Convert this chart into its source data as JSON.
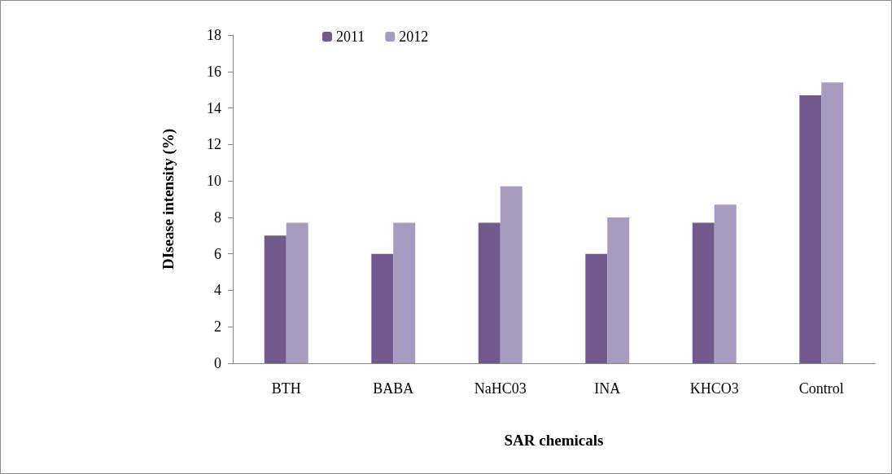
{
  "chart_data": {
    "type": "bar",
    "xlabel": "SAR chemicals",
    "ylabel": "DIsease intensity (%)",
    "categories": [
      "BTH",
      "BABA",
      "NaHC03",
      "INA",
      "KHCO3",
      "Control"
    ],
    "series": [
      {
        "name": "2011",
        "color": "#725a8f",
        "values": [
          7.0,
          6.0,
          7.7,
          6.0,
          7.7,
          14.7
        ]
      },
      {
        "name": "2012",
        "color": "#a89bc0",
        "values": [
          7.7,
          7.7,
          9.7,
          8.0,
          8.7,
          15.4
        ]
      }
    ],
    "ylim": [
      0,
      18
    ],
    "yticks": [
      0,
      2,
      4,
      6,
      8,
      10,
      12,
      14,
      16,
      18
    ],
    "grid": false,
    "legend": "top"
  }
}
